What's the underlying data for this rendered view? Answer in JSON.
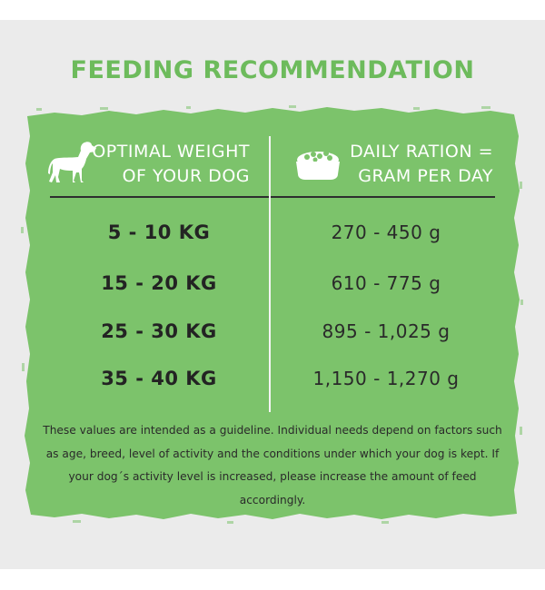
{
  "title": "FEEDING RECOMMENDATION",
  "header": {
    "weight": {
      "line1": "OPTIMAL WEIGHT",
      "line2": "OF YOUR DOG",
      "icon": "dog-icon"
    },
    "ration": {
      "line1": "DAILY RATION =",
      "line2": "GRAM PER DAY",
      "icon": "food-bowl-icon"
    }
  },
  "rows": [
    {
      "weight": "5 - 10 KG",
      "ration": "270 - 450 g"
    },
    {
      "weight": "15 - 20 KG",
      "ration": "610 - 775 g"
    },
    {
      "weight": "25 - 30 KG",
      "ration": "895 - 1,025 g"
    },
    {
      "weight": "35 - 40 KG",
      "ration": "1,150 - 1,270 g"
    }
  ],
  "footnote": "These values are intended as a guideline. Individual needs depend on factors such as age, breed, level of activity and the conditions under which your dog is kept. If your dog´s activity level is increased, please increase the amount of feed accordingly.",
  "colors": {
    "background": "#ebebeb",
    "title": "#6dbb5c",
    "panel": "#7cc36b",
    "panel_text": "#ffffff",
    "table_text": "#232323",
    "divider": "#2e2e2e"
  }
}
